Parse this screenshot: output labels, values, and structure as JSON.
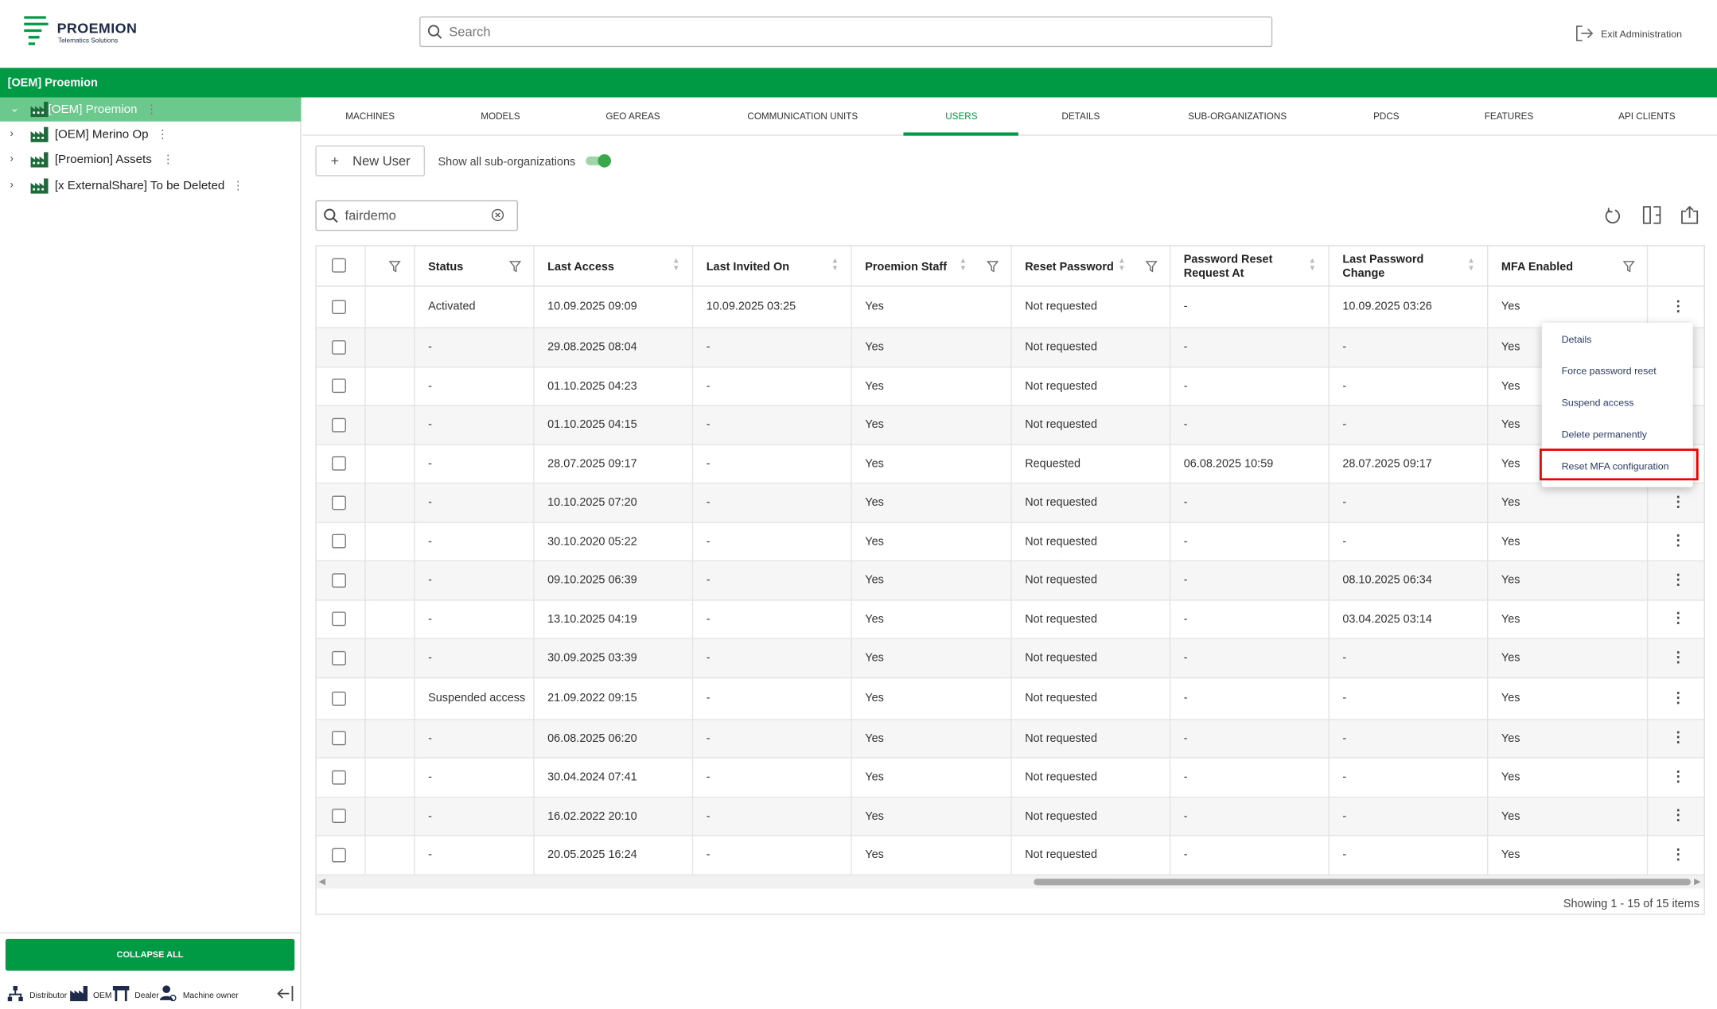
{
  "header": {
    "logo": "PROEMION",
    "logo_tagline": "Telematics Solutions",
    "search_placeholder": "Search",
    "exit": "Exit Administration"
  },
  "org_bar": "[OEM] Proemion",
  "tree": {
    "nodes": [
      {
        "label": "[OEM] Proemion",
        "selected": true
      },
      {
        "label": "[OEM] Merino Op"
      },
      {
        "label": "[Proemion] Assets"
      },
      {
        "label": "[x ExternalShare] To be Deleted"
      }
    ]
  },
  "sidebar_footer": {
    "collapse": "COLLAPSE ALL",
    "legend": [
      "Distributor",
      "OEM",
      "Dealer",
      "Machine owner"
    ]
  },
  "tabs": {
    "items": [
      "MACHINES",
      "MODELS",
      "GEO AREAS",
      "COMMUNICATION UNITS",
      "USERS",
      "DETAILS",
      "SUB-ORGANIZATIONS",
      "PDCS",
      "FEATURES",
      "API CLIENTS"
    ],
    "active": 4
  },
  "toolbar": {
    "new_user": "New User",
    "toggle": "Show all sub-organizations"
  },
  "filter": "fairdemo",
  "table": {
    "columns": [
      "Status",
      "Last Access",
      "Last Invited On",
      "Proemion Staff",
      "Reset Password",
      "Password Reset Request At",
      "Last Password Change",
      "MFA Enabled"
    ],
    "rows": [
      [
        "Activated",
        "10.09.2025 09:09",
        "10.09.2025 03:25",
        "Yes",
        "Not requested",
        "-",
        "10.09.2025 03:26",
        "Yes"
      ],
      [
        "-",
        "29.08.2025 08:04",
        "-",
        "Yes",
        "Not requested",
        "-",
        "-",
        "Yes"
      ],
      [
        "-",
        "01.10.2025 04:23",
        "-",
        "Yes",
        "Not requested",
        "-",
        "-",
        "Yes"
      ],
      [
        "-",
        "01.10.2025 04:15",
        "-",
        "Yes",
        "Not requested",
        "-",
        "-",
        "Yes"
      ],
      [
        "-",
        "28.07.2025 09:17",
        "-",
        "Yes",
        "Requested",
        "06.08.2025 10:59",
        "28.07.2025 09:17",
        "Yes"
      ],
      [
        "-",
        "10.10.2025 07:20",
        "-",
        "Yes",
        "Not requested",
        "-",
        "-",
        "Yes"
      ],
      [
        "-",
        "30.10.2020 05:22",
        "-",
        "Yes",
        "Not requested",
        "-",
        "-",
        "Yes"
      ],
      [
        "-",
        "09.10.2025 06:39",
        "-",
        "Yes",
        "Not requested",
        "-",
        "08.10.2025 06:34",
        "Yes"
      ],
      [
        "-",
        "13.10.2025 04:19",
        "-",
        "Yes",
        "Not requested",
        "-",
        "03.04.2025 03:14",
        "Yes"
      ],
      [
        "-",
        "30.09.2025 03:39",
        "-",
        "Yes",
        "Not requested",
        "-",
        "-",
        "Yes"
      ],
      [
        "Suspended access",
        "21.09.2022 09:15",
        "-",
        "Yes",
        "Not requested",
        "-",
        "-",
        "Yes"
      ],
      [
        "-",
        "06.08.2025 06:20",
        "-",
        "Yes",
        "Not requested",
        "-",
        "-",
        "Yes"
      ],
      [
        "-",
        "30.04.2024 07:41",
        "-",
        "Yes",
        "Not requested",
        "-",
        "-",
        "Yes"
      ],
      [
        "-",
        "16.02.2022 20:10",
        "-",
        "Yes",
        "Not requested",
        "-",
        "-",
        "Yes"
      ],
      [
        "-",
        "20.05.2025 16:24",
        "-",
        "Yes",
        "Not requested",
        "-",
        "-",
        "Yes"
      ]
    ],
    "footer": "Showing 1 - 15 of 15 items"
  },
  "menu": {
    "items": [
      "Details",
      "Force password reset",
      "Suspend access",
      "Delete permanently",
      "Reset MFA configuration"
    ],
    "highlighted": 4
  }
}
